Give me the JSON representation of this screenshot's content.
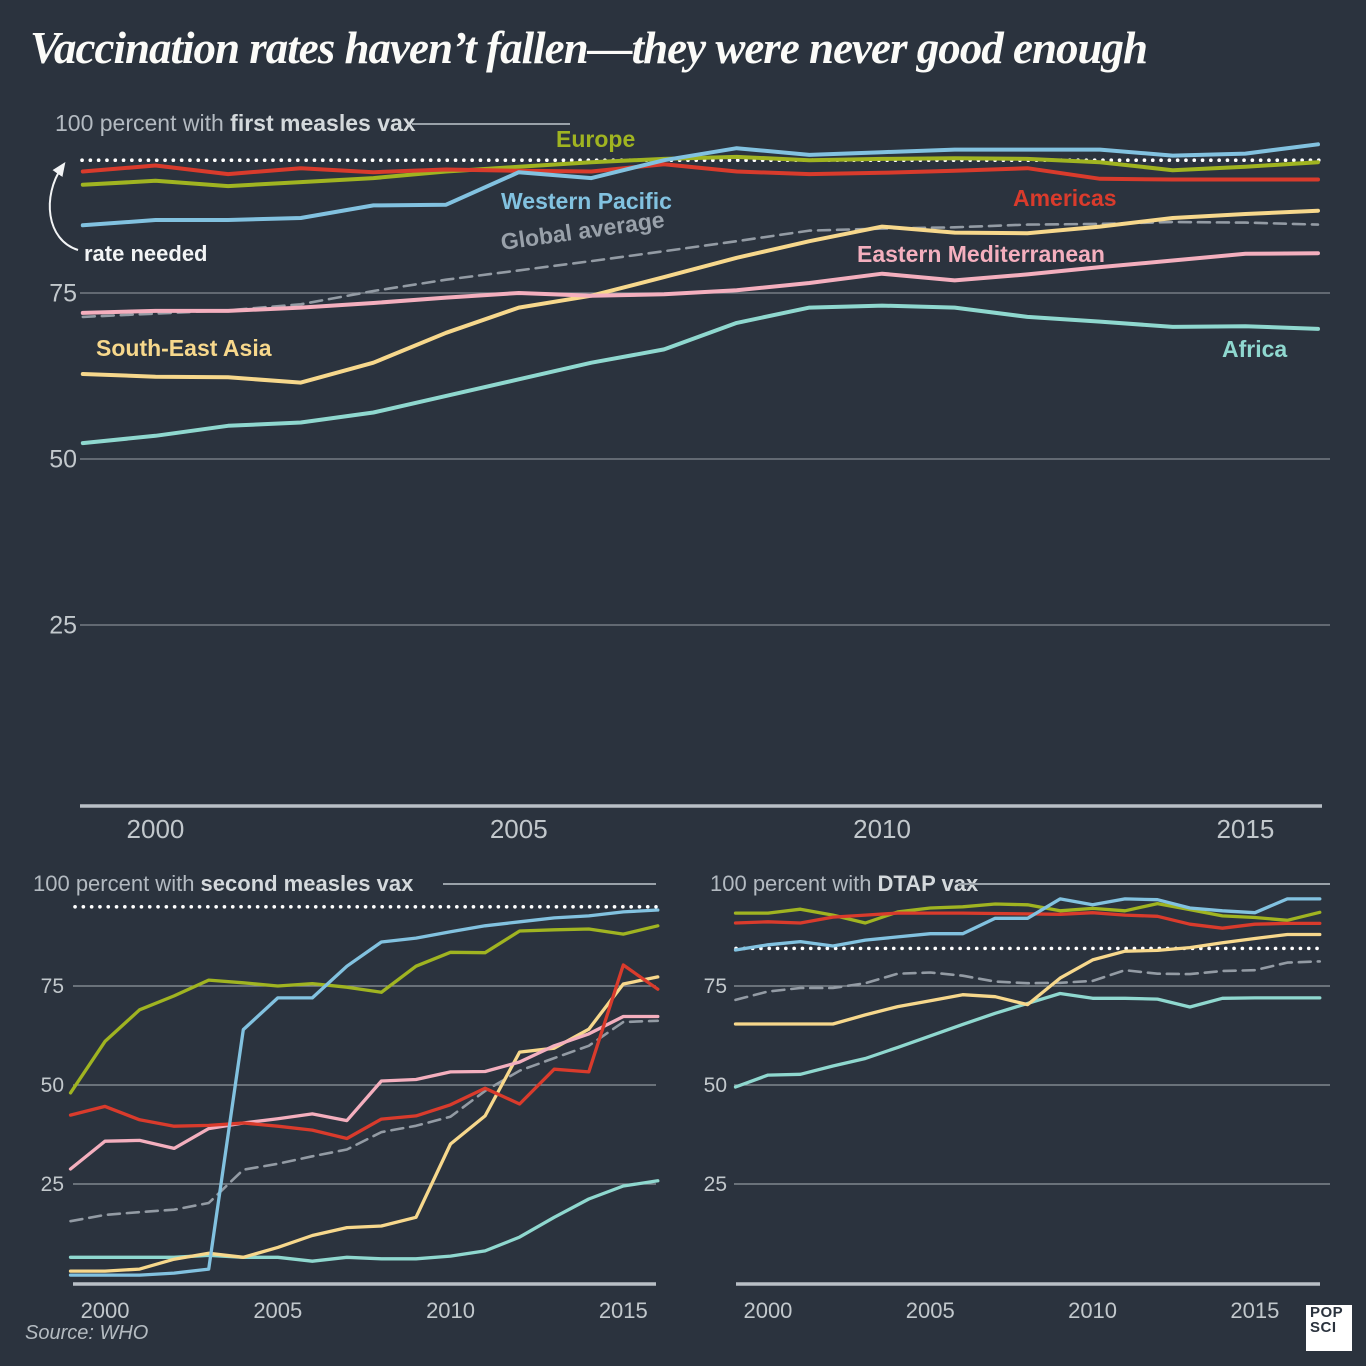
{
  "title": "Vaccination rates haven’t fallen—they were never good enough",
  "source": "Source: WHO",
  "logo": {
    "line1": "POP",
    "line2": "SCI"
  },
  "colors": {
    "background": "#2b333e",
    "europe": "#a0b421",
    "western_pacific": "#82c2e0",
    "americas": "#d93b2c",
    "eastern_mediterranean": "#f4afbe",
    "south_east_asia": "#f7d88c",
    "africa": "#8fd8cf",
    "global_average": "#939ba4",
    "rate_needed": "#ffffff"
  },
  "chart_data": [
    {
      "id": "first_measles",
      "type": "line",
      "heading_prefix": "100 percent with ",
      "heading_bold": "first measles vax",
      "x_ticks": [
        2000,
        2005,
        2010,
        2015
      ],
      "y_ticks": [
        75,
        50,
        25
      ],
      "ylim": [
        0,
        100
      ],
      "grid": true,
      "years": [
        1999,
        2000,
        2001,
        2002,
        2003,
        2004,
        2005,
        2006,
        2007,
        2008,
        2009,
        2010,
        2011,
        2012,
        2013,
        2014,
        2015,
        2016
      ],
      "rate_needed": {
        "value": 95,
        "label": "rate needed"
      },
      "series": [
        {
          "name": "western_pacific",
          "label": "Western Pacific",
          "values": [
            85.2,
            86,
            86,
            86.3,
            88.2,
            88.3,
            93.2,
            92.3,
            95,
            96.8,
            95.8,
            96.2,
            96.6,
            96.6,
            96.6,
            95.7,
            96,
            97.4
          ]
        },
        {
          "name": "europe",
          "label": "Europe",
          "values": [
            91.3,
            91.9,
            91.1,
            91.7,
            92.3,
            93.3,
            94,
            94.7,
            95.2,
            95.5,
            95,
            95.2,
            95.3,
            95.2,
            94.7,
            93.5,
            94,
            94.7
          ]
        },
        {
          "name": "americas",
          "label": "Americas",
          "values": [
            93.3,
            94.2,
            92.9,
            93.8,
            93.2,
            93.6,
            93.4,
            93.3,
            94.4,
            93.3,
            92.9,
            93.1,
            93.4,
            93.8,
            92.2,
            92.1,
            92.1,
            92.1
          ]
        },
        {
          "name": "eastern_mediterranean",
          "label": "Eastern Mediterranean",
          "values": [
            72,
            72.3,
            72.3,
            72.8,
            73.5,
            74.3,
            75,
            74.6,
            74.8,
            75.4,
            76.5,
            77.9,
            76.9,
            77.8,
            78.9,
            79.9,
            80.9,
            81
          ]
        },
        {
          "name": "global_average",
          "label": "Global average",
          "values": [
            71.4,
            71.9,
            72.4,
            73.3,
            75.3,
            77,
            78.4,
            79.8,
            81.3,
            82.8,
            84.4,
            84.7,
            84.9,
            85.3,
            85.4,
            85.7,
            85.6,
            85.3
          ]
        },
        {
          "name": "south_east_asia",
          "label": "South-East Asia",
          "values": [
            62.8,
            62.4,
            62.3,
            61.5,
            64.5,
            69,
            72.8,
            74.6,
            77.4,
            80.3,
            82.8,
            85,
            84.1,
            84,
            85,
            86.3,
            86.9,
            87.4
          ]
        },
        {
          "name": "africa",
          "label": "Africa",
          "values": [
            52.4,
            53.5,
            55,
            55.5,
            57,
            59.5,
            62,
            64.5,
            66.5,
            70.5,
            72.8,
            73.1,
            72.8,
            71.4,
            70.7,
            69.9,
            70,
            69.6
          ]
        }
      ]
    },
    {
      "id": "second_measles",
      "type": "line",
      "heading_prefix": "100 percent with ",
      "heading_bold": "second measles vax",
      "x_ticks": [
        2000,
        2005,
        2010,
        2015
      ],
      "y_ticks": [
        75,
        50,
        25
      ],
      "ylim": [
        0,
        100
      ],
      "grid": true,
      "years": [
        1999,
        2000,
        2001,
        2002,
        2003,
        2004,
        2005,
        2006,
        2007,
        2008,
        2009,
        2010,
        2011,
        2012,
        2013,
        2014,
        2015,
        2016
      ],
      "rate_needed": {
        "value": 95,
        "label": ""
      },
      "series": [
        {
          "name": "western_pacific",
          "label": "",
          "values": [
            2,
            2,
            2,
            2.5,
            3.5,
            64,
            72,
            72,
            80,
            86.1,
            87.1,
            88.7,
            90.2,
            91.2,
            92.2,
            92.7,
            93.7,
            94.2
          ]
        },
        {
          "name": "europe",
          "label": "",
          "values": [
            48,
            61,
            69,
            72.5,
            76.5,
            75.8,
            75,
            75.6,
            74.7,
            73.4,
            80,
            83.5,
            83.4,
            88.9,
            89.2,
            89.4,
            88.1,
            90.2
          ]
        },
        {
          "name": "americas",
          "label": "",
          "values": [
            42.4,
            44.6,
            41.2,
            39.6,
            39.8,
            40.4,
            39.6,
            38.6,
            36.5,
            41.4,
            42.2,
            45,
            49.2,
            45.2,
            54,
            53.3,
            80.3,
            74.2
          ]
        },
        {
          "name": "eastern_mediterranean",
          "label": "",
          "values": [
            28.8,
            35.8,
            36,
            34,
            39,
            40.4,
            41.5,
            42.7,
            41,
            51,
            51.4,
            53.3,
            53.4,
            55.8,
            59.9,
            62.9,
            67.3,
            67.3
          ]
        },
        {
          "name": "global_average",
          "label": "",
          "values": [
            15.6,
            17.2,
            17.9,
            18.5,
            20.2,
            28.6,
            30.1,
            32,
            33.7,
            38.1,
            39.7,
            42,
            48.5,
            53.6,
            56.8,
            59.9,
            65.9,
            66.2
          ]
        },
        {
          "name": "south_east_asia",
          "label": "",
          "values": [
            3,
            3,
            3.5,
            6,
            7.5,
            6.5,
            9,
            12,
            14,
            14.4,
            16.6,
            35.1,
            42.2,
            58.3,
            59.3,
            64.1,
            75.5,
            77.3
          ]
        },
        {
          "name": "africa",
          "label": "",
          "values": [
            6.5,
            6.5,
            6.5,
            6.5,
            7,
            6.5,
            6.5,
            5.5,
            6.5,
            6.1,
            6.1,
            6.8,
            8.1,
            11.6,
            16.6,
            21.2,
            24.5,
            25.8
          ]
        }
      ]
    },
    {
      "id": "dtap",
      "type": "line",
      "heading_prefix": "100 percent with ",
      "heading_bold": "DTAP vax",
      "x_ticks": [
        2000,
        2005,
        2010,
        2015
      ],
      "y_ticks": [
        75,
        50,
        25
      ],
      "ylim": [
        0,
        100
      ],
      "grid": true,
      "years": [
        1999,
        2000,
        2001,
        2002,
        2003,
        2004,
        2005,
        2006,
        2007,
        2008,
        2009,
        2010,
        2011,
        2012,
        2013,
        2014,
        2015,
        2016,
        2017
      ],
      "rate_needed": {
        "value": 84.5,
        "label": ""
      },
      "series": [
        {
          "name": "western_pacific",
          "label": "",
          "values": [
            84.1,
            85.4,
            86.2,
            85.1,
            86.6,
            87.4,
            88.2,
            88.2,
            92.1,
            92.1,
            97,
            95.5,
            97,
            96.8,
            94.7,
            94,
            93.5,
            97,
            97
          ]
        },
        {
          "name": "europe",
          "label": "",
          "values": [
            93.4,
            93.4,
            94.4,
            92.9,
            90.9,
            93.7,
            94.7,
            95,
            95.7,
            95.5,
            94,
            94.6,
            94,
            95.8,
            94.3,
            92.7,
            92.3,
            91.6,
            93.6
          ]
        },
        {
          "name": "americas",
          "label": "",
          "values": [
            90.9,
            91.2,
            90.9,
            92.4,
            92.9,
            93.4,
            93.4,
            93.4,
            93.3,
            93.2,
            93.1,
            93.5,
            92.9,
            92.6,
            90.6,
            89.6,
            90.6,
            90.8,
            90.8
          ]
        },
        {
          "name": "eastern_mediterranean",
          "label": "",
          "values": []
        },
        {
          "name": "global_average",
          "label": "",
          "values": [
            71.5,
            73.6,
            74.5,
            74.5,
            75.7,
            78.1,
            78.4,
            77.6,
            76.1,
            75.7,
            75.8,
            76.3,
            79,
            78.1,
            78,
            78.8,
            79,
            80.9,
            81.2
          ]
        },
        {
          "name": "south_east_asia",
          "label": "",
          "values": [
            65.4,
            65.4,
            65.4,
            65.4,
            67.7,
            69.8,
            71.3,
            72.8,
            72.3,
            70.3,
            77,
            81.6,
            83.8,
            84,
            84.7,
            85.9,
            87,
            88,
            88
          ]
        },
        {
          "name": "africa",
          "label": "",
          "values": [
            49.5,
            52.5,
            52.7,
            54.8,
            56.7,
            59.5,
            62.4,
            65.3,
            68.1,
            70.6,
            73.1,
            71.9,
            71.9,
            71.7,
            69.7,
            71.9,
            72,
            72,
            72
          ]
        }
      ]
    }
  ]
}
